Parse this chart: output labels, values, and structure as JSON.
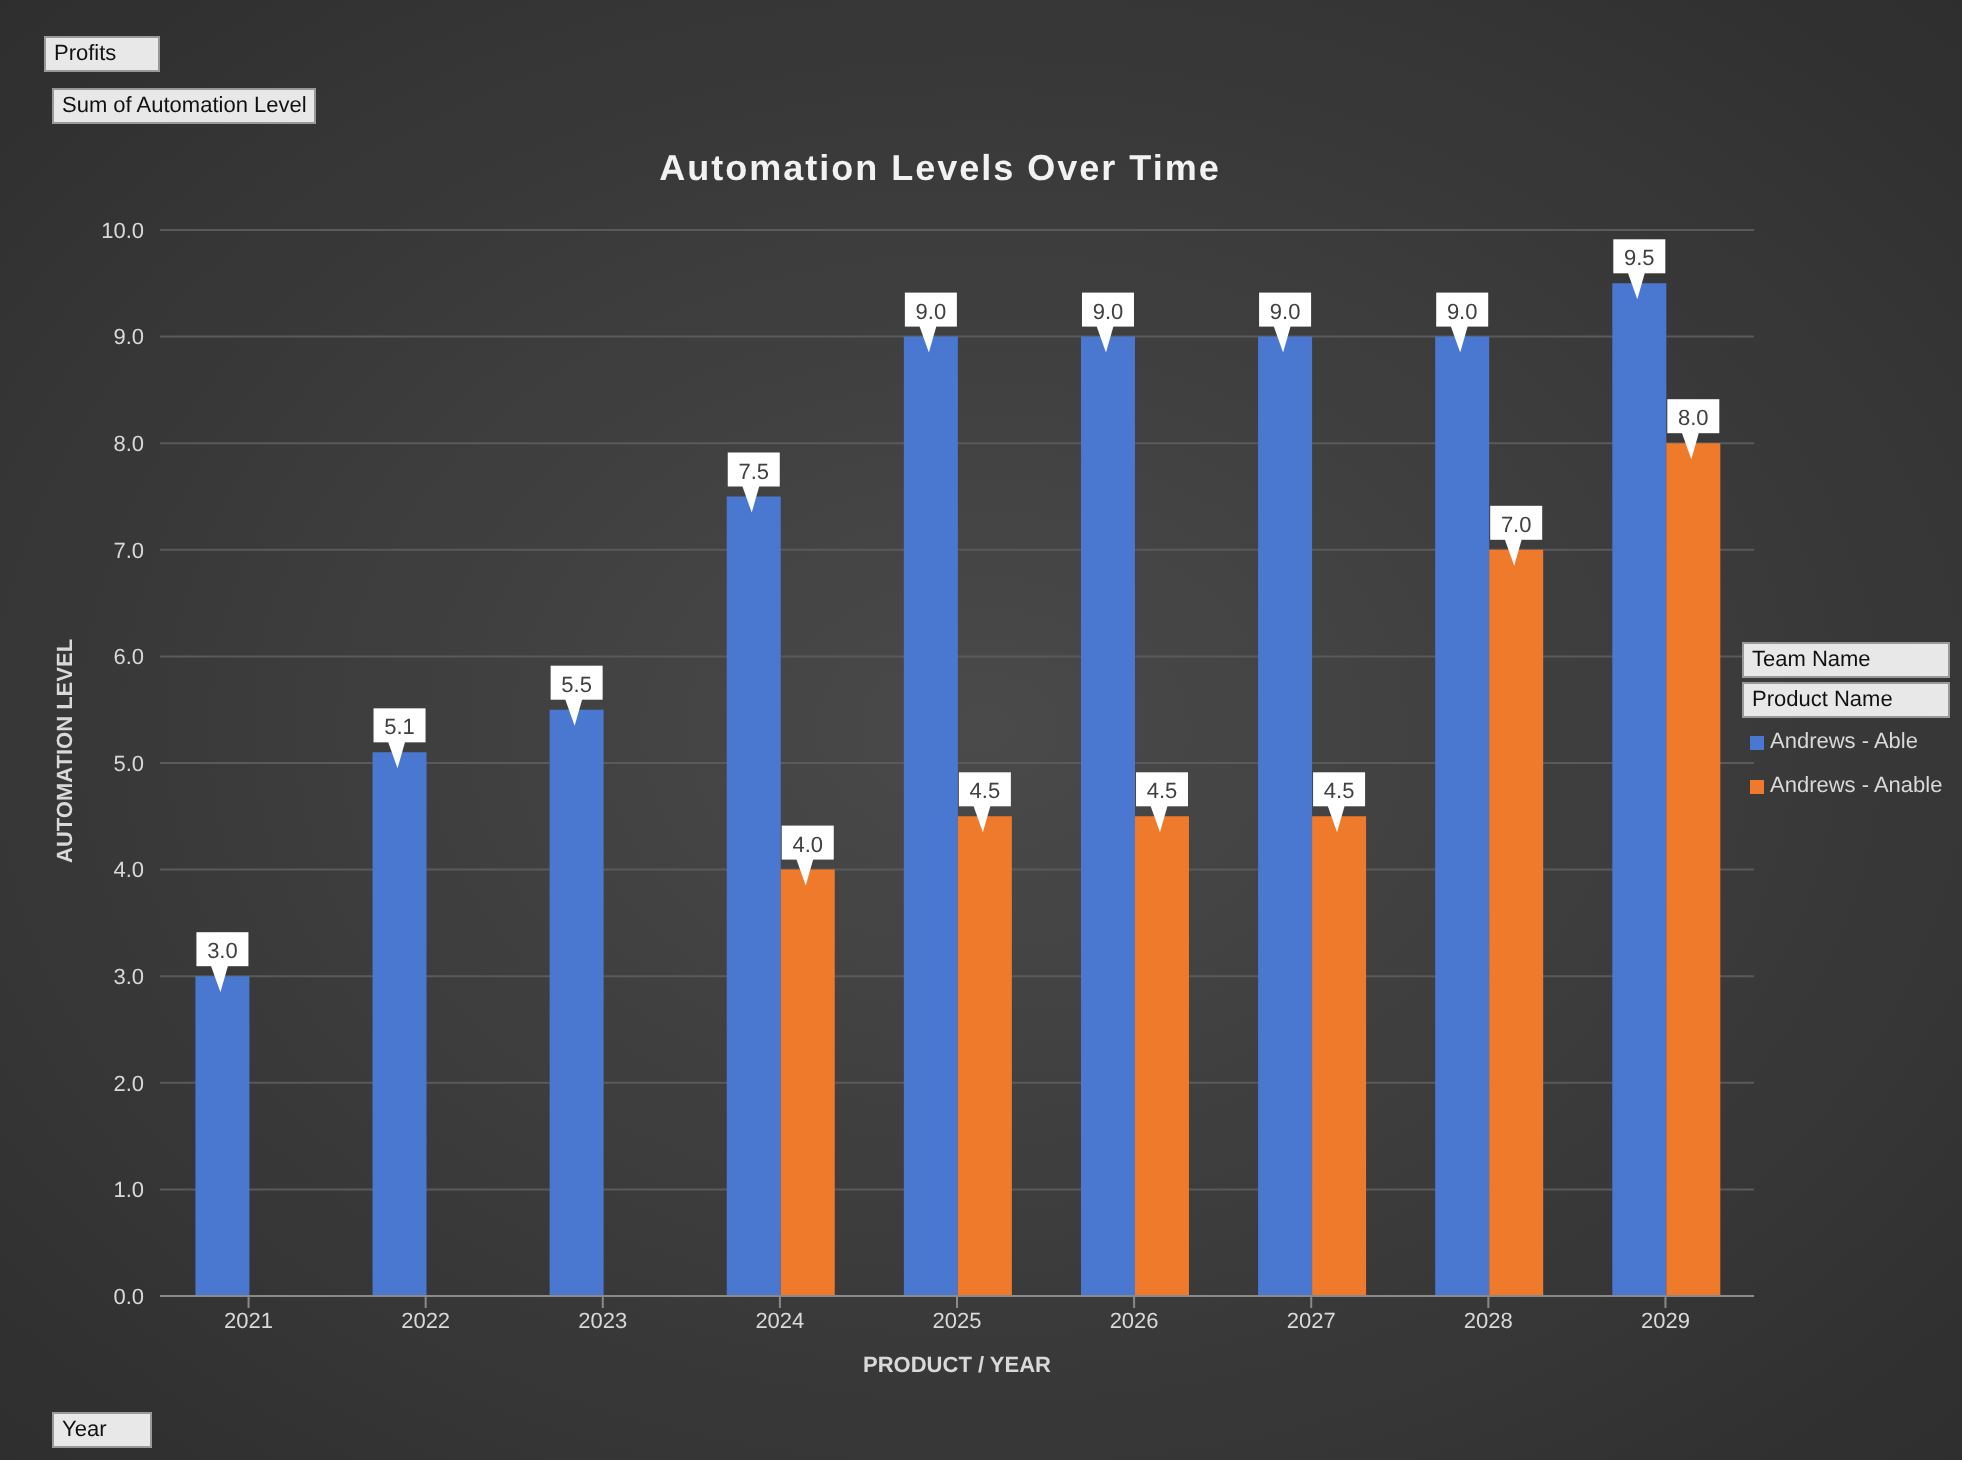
{
  "chart_data": {
    "type": "bar",
    "title": "Automation Levels Over Time",
    "xlabel": "PRODUCT / YEAR",
    "ylabel": "AUTOMATION LEVEL",
    "legend_title": "Team Name",
    "annotations": [
      "Profits",
      "Sum of Automation Level",
      "Product Name",
      "Year"
    ],
    "categories": [
      "2021",
      "2022",
      "2023",
      "2024",
      "2025",
      "2026",
      "2027",
      "2028",
      "2029"
    ],
    "series": [
      {
        "name": "Andrews - Able",
        "color": "#4a78d0",
        "values": [
          3.0,
          5.1,
          5.5,
          7.5,
          9.0,
          9.0,
          9.0,
          9.0,
          9.5
        ],
        "value_labels": [
          "3.0",
          "5.1",
          "5.5",
          "7.5",
          "9.0",
          "9.0",
          "9.0",
          "9.0",
          "9.5"
        ]
      },
      {
        "name": "Andrews - Anable",
        "color": "#ef7a2c",
        "values": [
          null,
          null,
          null,
          4.0,
          4.5,
          4.5,
          4.5,
          7.0,
          8.0
        ],
        "value_labels": [
          null,
          null,
          null,
          "4.0",
          "4.5",
          "4.5",
          "4.5",
          "7.0",
          "8.0"
        ]
      }
    ],
    "ylim": [
      0,
      10
    ],
    "yticks": [
      {
        "value": 0,
        "label": "0.0"
      },
      {
        "value": 1,
        "label": "1.0"
      },
      {
        "value": 2,
        "label": "2.0"
      },
      {
        "value": 3,
        "label": "3.0"
      },
      {
        "value": 4,
        "label": "4.0"
      },
      {
        "value": 5,
        "label": "5.0"
      },
      {
        "value": 6,
        "label": "6.0"
      },
      {
        "value": 7,
        "label": "7.0"
      },
      {
        "value": 8,
        "label": "8.0"
      },
      {
        "value": 9,
        "label": "9.0"
      },
      {
        "value": 10,
        "label": "10.0"
      }
    ],
    "grid": "y",
    "legend": "right"
  }
}
